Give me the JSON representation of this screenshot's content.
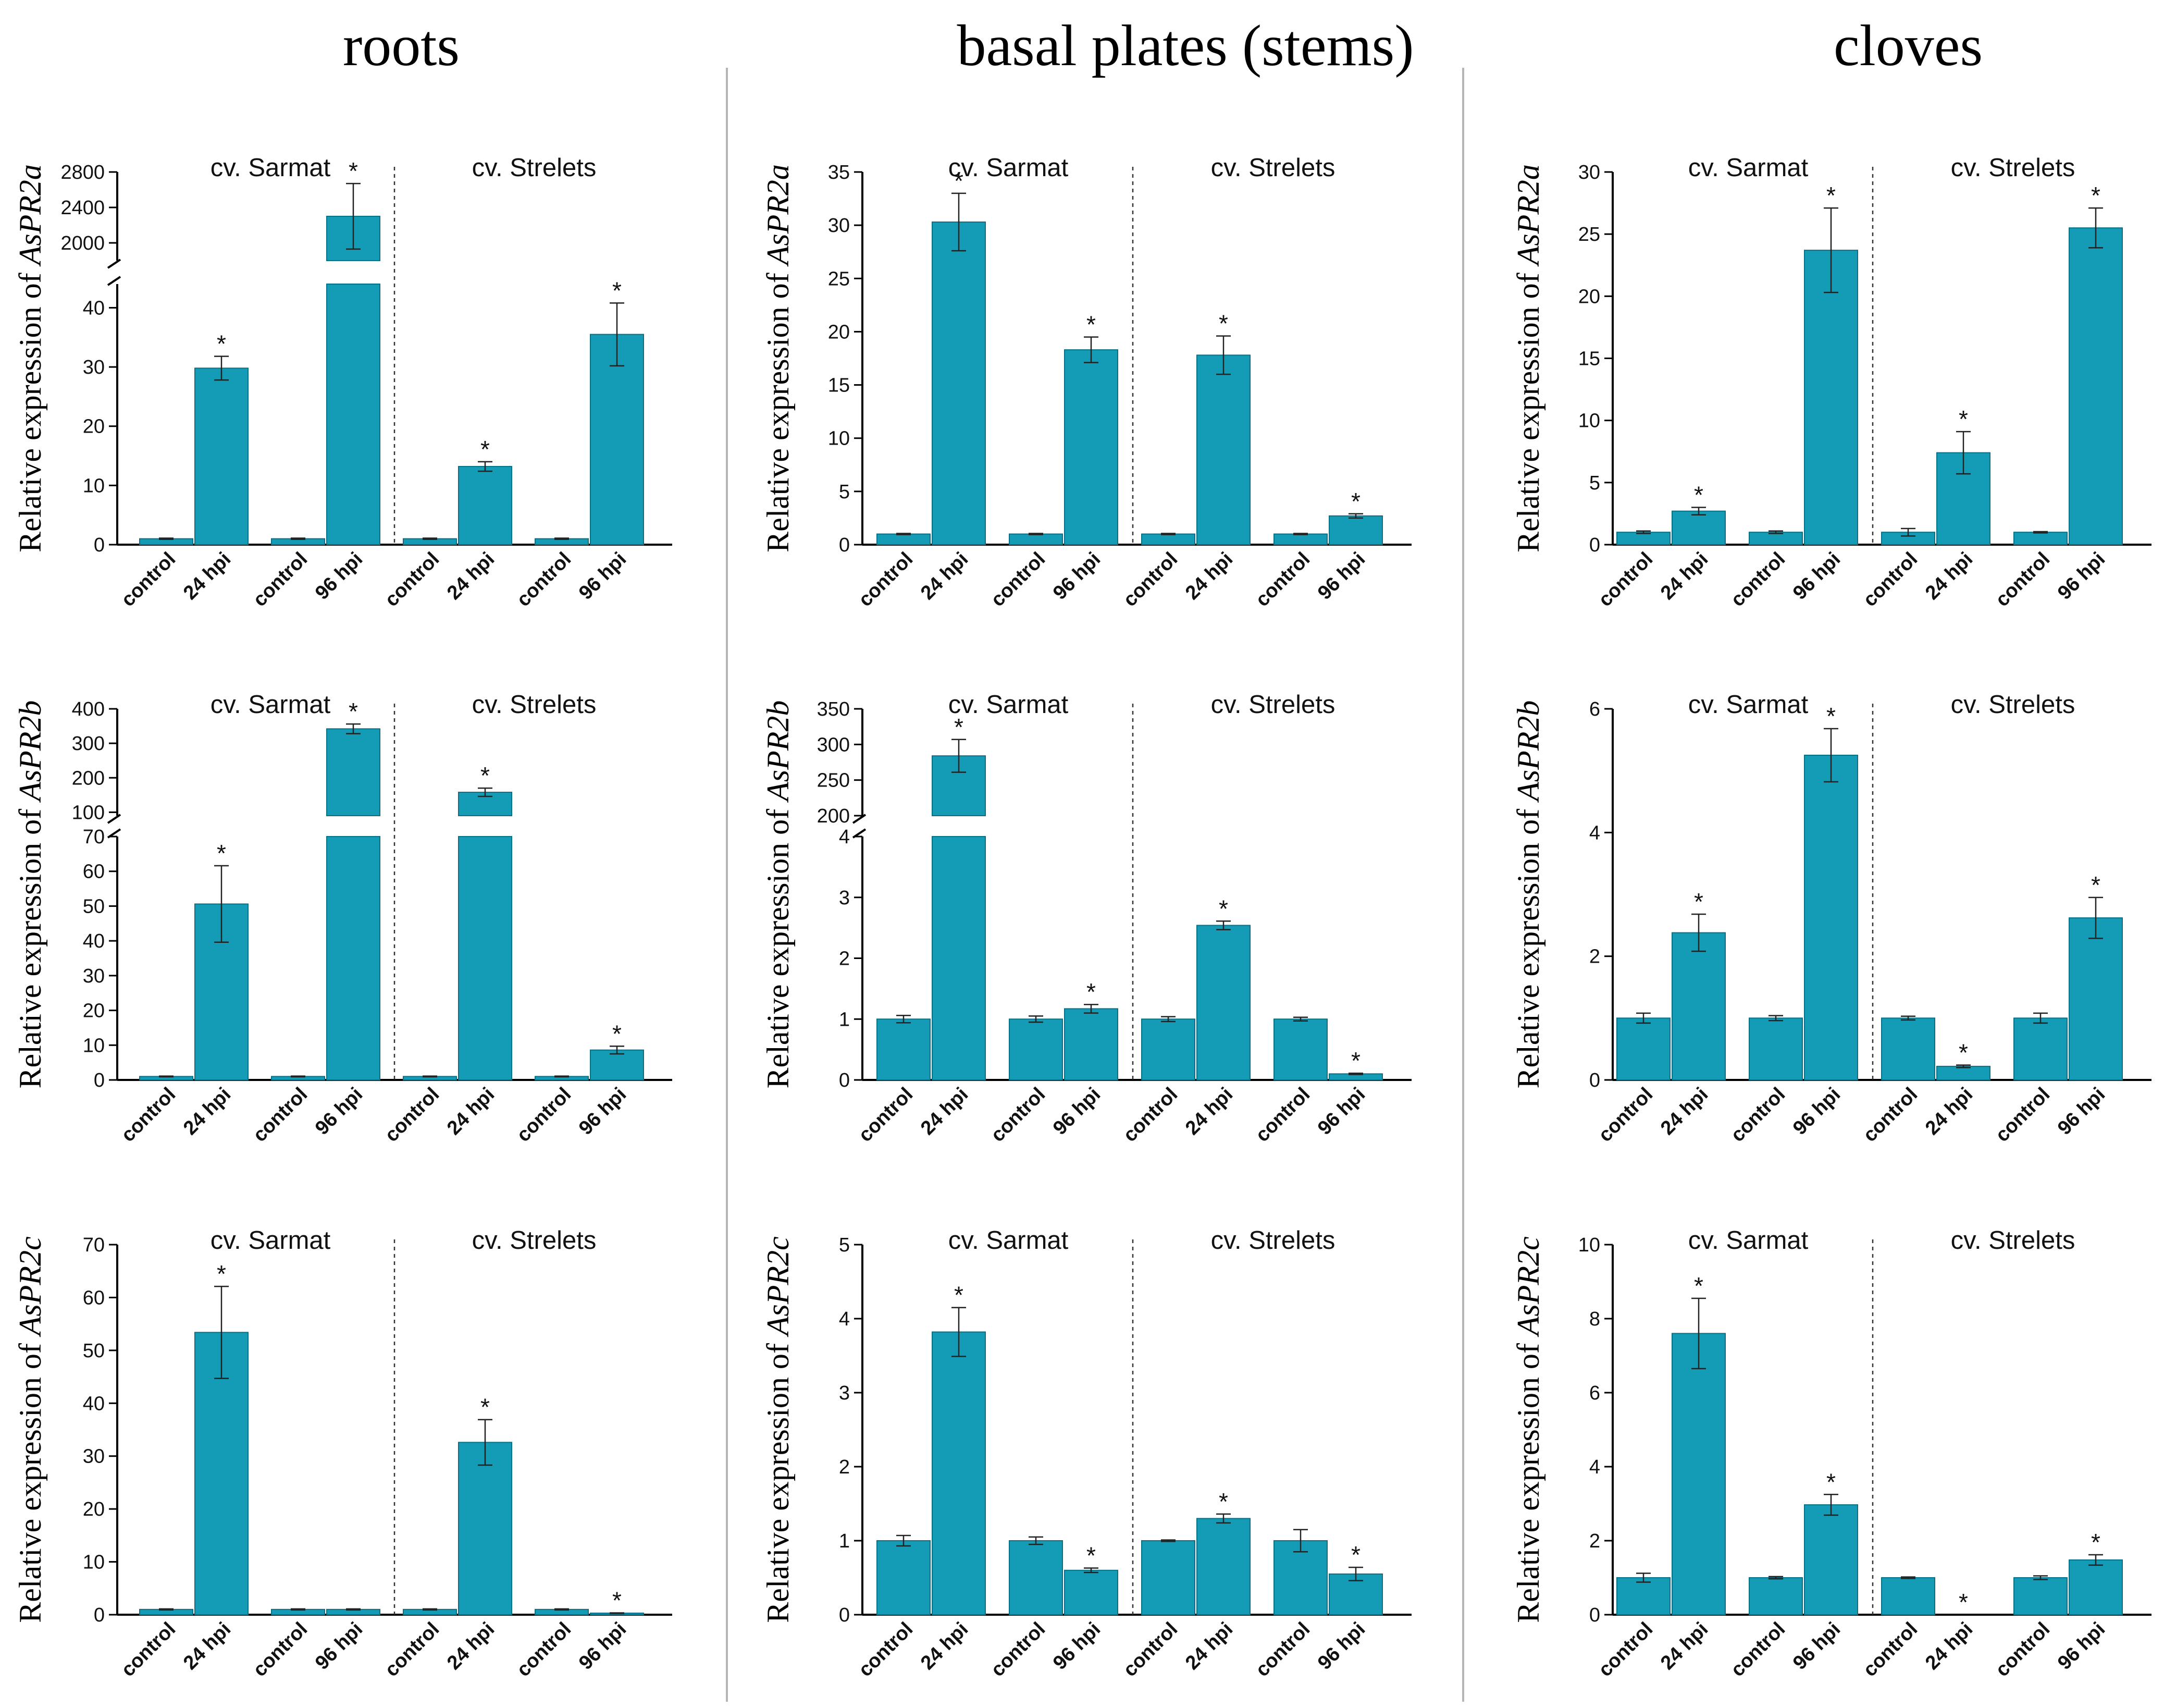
{
  "figure": {
    "columns": [
      "roots",
      "basal plates (stems)",
      "cloves"
    ],
    "ylabel_prefix": "Relative expression of ",
    "genes": [
      "AsPR2a",
      "AsPR2b",
      "AsPR2c"
    ],
    "cultivars": [
      "cv. Sarmat",
      "cv. Strelets"
    ],
    "bar_color": "#149cb7",
    "significance_mark": "*"
  },
  "chart_data": [
    {
      "id": "roots-AsPR2a",
      "type": "bar",
      "tissue": "roots",
      "gene": "AsPR2a",
      "ylabel": "Relative expression of AsPR2a",
      "cultivars": [
        "cv. Sarmat",
        "cv. Strelets"
      ],
      "categories": [
        "control",
        "24 hpi",
        "control",
        "96 hpi",
        "control",
        "24 hpi",
        "control",
        "96 hpi"
      ],
      "values": [
        1,
        29.8,
        1,
        2300,
        1,
        13.2,
        1,
        35.5
      ],
      "errors": [
        0.1,
        2,
        0.1,
        370,
        0.1,
        0.8,
        0.1,
        5.3
      ],
      "significant": [
        false,
        true,
        false,
        true,
        false,
        true,
        false,
        true
      ],
      "axis_break": {
        "lower": [
          0,
          44
        ],
        "upper": [
          1800,
          2800
        ]
      },
      "yticks_lower": [
        0,
        10,
        20,
        30,
        40
      ],
      "yticks_upper": [
        2000,
        2400,
        2800
      ]
    },
    {
      "id": "basal-AsPR2a",
      "type": "bar",
      "tissue": "basal plates (stems)",
      "gene": "AsPR2a",
      "ylabel": "Relative expression of AsPR2a",
      "cultivars": [
        "cv. Sarmat",
        "cv. Strelets"
      ],
      "categories": [
        "control",
        "24 hpi",
        "control",
        "96 hpi",
        "control",
        "24 hpi",
        "control",
        "96 hpi"
      ],
      "values": [
        1,
        30.3,
        1,
        18.3,
        1,
        17.8,
        1,
        2.7
      ],
      "errors": [
        0.05,
        2.7,
        0.05,
        1.2,
        0.05,
        1.8,
        0.05,
        0.2
      ],
      "significant": [
        false,
        true,
        false,
        true,
        false,
        true,
        false,
        true
      ],
      "ylim": [
        0,
        35
      ],
      "yticks": [
        0,
        5,
        10,
        15,
        20,
        25,
        30,
        35
      ]
    },
    {
      "id": "cloves-AsPR2a",
      "type": "bar",
      "tissue": "cloves",
      "gene": "AsPR2a",
      "ylabel": "Relative expression of AsPR2a",
      "cultivars": [
        "cv. Sarmat",
        "cv. Strelets"
      ],
      "categories": [
        "control",
        "24 hpi",
        "control",
        "96 hpi",
        "control",
        "24 hpi",
        "control",
        "96 hpi"
      ],
      "values": [
        1,
        2.7,
        1,
        23.7,
        1,
        7.4,
        1,
        25.5
      ],
      "errors": [
        0.1,
        0.3,
        0.1,
        3.4,
        0.3,
        1.7,
        0.05,
        1.6
      ],
      "significant": [
        false,
        true,
        false,
        true,
        false,
        true,
        false,
        true
      ],
      "ylim": [
        0,
        30
      ],
      "yticks": [
        0,
        5,
        10,
        15,
        20,
        25,
        30
      ]
    },
    {
      "id": "roots-AsPR2b",
      "type": "bar",
      "tissue": "roots",
      "gene": "AsPR2b",
      "ylabel": "Relative expression of AsPR2b",
      "cultivars": [
        "cv. Sarmat",
        "cv. Strelets"
      ],
      "categories": [
        "control",
        "24 hpi",
        "control",
        "96 hpi",
        "control",
        "24 hpi",
        "control",
        "96 hpi"
      ],
      "values": [
        1,
        50.6,
        1,
        342,
        1,
        158,
        1,
        8.6
      ],
      "errors": [
        0.1,
        11,
        0.1,
        14,
        0.1,
        12,
        0.1,
        1.1
      ],
      "significant": [
        false,
        true,
        false,
        true,
        false,
        true,
        false,
        true
      ],
      "axis_break": {
        "lower": [
          0,
          70
        ],
        "upper": [
          90,
          400
        ]
      },
      "yticks_lower": [
        0,
        10,
        20,
        30,
        40,
        50,
        60,
        70
      ],
      "yticks_upper": [
        100,
        200,
        300,
        400
      ]
    },
    {
      "id": "basal-AsPR2b",
      "type": "bar",
      "tissue": "basal plates (stems)",
      "gene": "AsPR2b",
      "ylabel": "Relative expression of AsPR2b",
      "cultivars": [
        "cv. Sarmat",
        "cv. Strelets"
      ],
      "categories": [
        "control",
        "24 hpi",
        "control",
        "96 hpi",
        "control",
        "24 hpi",
        "control",
        "96 hpi"
      ],
      "values": [
        1,
        284,
        1,
        1.17,
        1,
        2.54,
        1,
        0.1
      ],
      "errors": [
        0.06,
        23,
        0.05,
        0.07,
        0.04,
        0.07,
        0.03,
        0.01
      ],
      "significant": [
        false,
        true,
        false,
        true,
        false,
        true,
        false,
        true
      ],
      "axis_break": {
        "lower": [
          0,
          4
        ],
        "upper": [
          200,
          350
        ]
      },
      "yticks_lower": [
        0,
        1,
        2,
        3,
        4
      ],
      "yticks_upper": [
        200,
        250,
        300,
        350
      ]
    },
    {
      "id": "cloves-AsPR2b",
      "type": "bar",
      "tissue": "cloves",
      "gene": "AsPR2b",
      "ylabel": "Relative expression of AsPR2b",
      "cultivars": [
        "cv. Sarmat",
        "cv. Strelets"
      ],
      "categories": [
        "control",
        "24 hpi",
        "control",
        "96 hpi",
        "control",
        "24 hpi",
        "control",
        "96 hpi"
      ],
      "values": [
        1,
        2.38,
        1,
        5.25,
        1,
        0.22,
        1,
        2.62
      ],
      "errors": [
        0.08,
        0.3,
        0.04,
        0.43,
        0.03,
        0.02,
        0.08,
        0.33
      ],
      "significant": [
        false,
        true,
        false,
        true,
        false,
        true,
        false,
        true
      ],
      "ylim": [
        0,
        6
      ],
      "yticks": [
        0,
        2,
        4,
        6
      ]
    },
    {
      "id": "roots-AsPR2c",
      "type": "bar",
      "tissue": "roots",
      "gene": "AsPR2c",
      "ylabel": "Relative expression of AsPR2c",
      "cultivars": [
        "cv. Sarmat",
        "cv. Strelets"
      ],
      "categories": [
        "control",
        "24 hpi",
        "control",
        "96 hpi",
        "control",
        "24 hpi",
        "control",
        "96 hpi"
      ],
      "values": [
        1,
        53.4,
        1,
        1,
        1,
        32.6,
        1,
        0.3
      ],
      "errors": [
        0.1,
        8.7,
        0.1,
        0.1,
        0.1,
        4.3,
        0.1,
        0.05
      ],
      "significant": [
        false,
        true,
        false,
        false,
        false,
        true,
        false,
        true
      ],
      "ylim": [
        0,
        70
      ],
      "yticks": [
        0,
        10,
        20,
        30,
        40,
        50,
        60,
        70
      ]
    },
    {
      "id": "basal-AsPR2c",
      "type": "bar",
      "tissue": "basal plates (stems)",
      "gene": "AsPR2c",
      "ylabel": "Relative expression of AsPR2c",
      "cultivars": [
        "cv. Sarmat",
        "cv. Strelets"
      ],
      "categories": [
        "control",
        "24 hpi",
        "control",
        "96 hpi",
        "control",
        "24 hpi",
        "control",
        "96 hpi"
      ],
      "values": [
        1,
        3.82,
        1,
        0.6,
        1,
        1.3,
        1,
        0.55
      ],
      "errors": [
        0.07,
        0.33,
        0.05,
        0.03,
        0.01,
        0.06,
        0.15,
        0.09
      ],
      "significant": [
        false,
        true,
        false,
        true,
        false,
        true,
        false,
        true
      ],
      "ylim": [
        0,
        5
      ],
      "yticks": [
        0,
        1,
        2,
        3,
        4,
        5
      ]
    },
    {
      "id": "cloves-AsPR2c",
      "type": "bar",
      "tissue": "cloves",
      "gene": "AsPR2c",
      "ylabel": "Relative expression of AsPR2c",
      "cultivars": [
        "cv. Sarmat",
        "cv. Strelets"
      ],
      "categories": [
        "control",
        "24 hpi",
        "control",
        "96 hpi",
        "control",
        "24 hpi",
        "control",
        "96 hpi"
      ],
      "values": [
        1,
        7.6,
        1,
        2.97,
        1,
        0,
        1,
        1.48
      ],
      "errors": [
        0.12,
        0.95,
        0.03,
        0.28,
        0.02,
        0,
        0.05,
        0.14
      ],
      "significant": [
        false,
        true,
        false,
        true,
        false,
        true,
        false,
        true
      ],
      "ylim": [
        0,
        10
      ],
      "yticks": [
        0,
        2,
        4,
        6,
        8,
        10
      ]
    }
  ]
}
